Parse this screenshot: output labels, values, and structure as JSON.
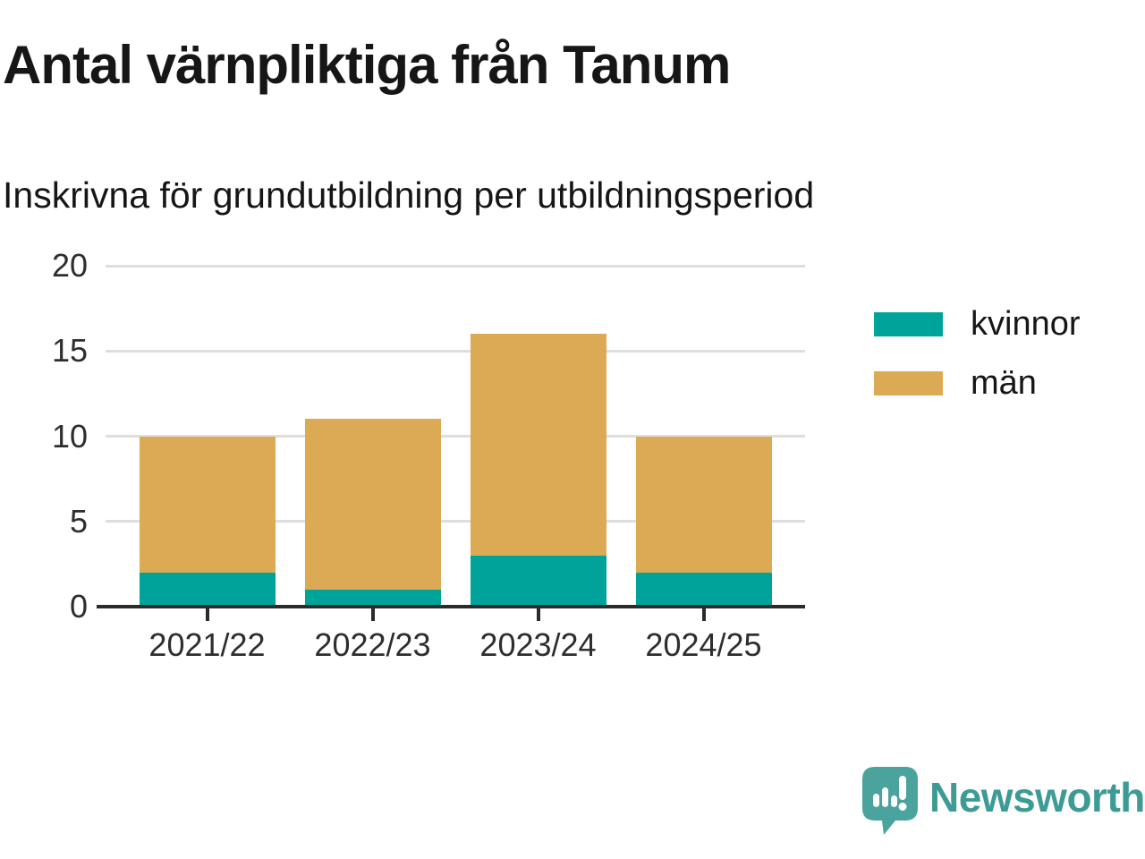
{
  "header": {
    "title": "Antal värnpliktiga från Tanum",
    "subtitle": "Inskrivna för grundutbildning per utbildningsperiod"
  },
  "chart_data": {
    "type": "bar",
    "stacked": true,
    "title": "Antal värnpliktiga från Tanum",
    "subtitle": "Inskrivna för grundutbildning per utbildningsperiod",
    "categories": [
      "2021/22",
      "2022/23",
      "2023/24",
      "2024/25"
    ],
    "series": [
      {
        "name": "kvinnor",
        "color": "#00a39a",
        "values": [
          2,
          1,
          3,
          2
        ]
      },
      {
        "name": "män",
        "color": "#dcaa55",
        "values": [
          8,
          10,
          13,
          8
        ]
      }
    ],
    "totals": [
      10,
      11,
      16,
      10
    ],
    "xlabel": "",
    "ylabel": "",
    "ylim": [
      0,
      20
    ],
    "yticks": [
      0,
      5,
      10,
      15,
      20
    ],
    "grid": true,
    "legend_position": "right"
  },
  "colors": {
    "kvinnor": "#00a39a",
    "man": "#dcaa55",
    "gridline": "#dedede",
    "axis": "#2b2b2b",
    "brand_teal": "#3d9b95",
    "logo_bubble": "#4aa39d"
  },
  "footer": {
    "brand": "Newsworthy"
  }
}
